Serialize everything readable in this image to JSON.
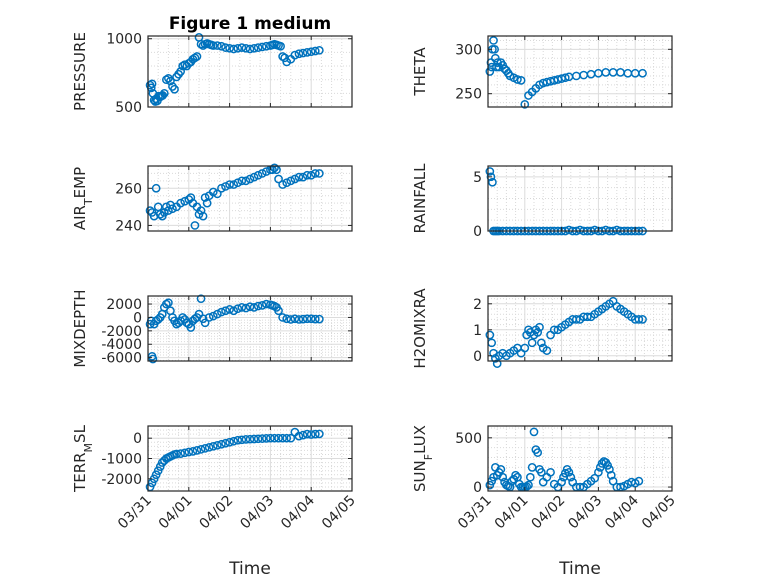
{
  "figure_title": "Figure 1 medium",
  "xlabel": "Time",
  "x_tick_labels": [
    "03/31",
    "04/01",
    "04/02",
    "04/03",
    "04/04",
    "04/05"
  ],
  "marker_color": "#0072BD",
  "chart_data": [
    {
      "type": "scatter",
      "title": "Figure 1 medium",
      "ylabel": "PRESSURE",
      "ylim": [
        500,
        1020
      ],
      "yticks": [
        500,
        1000
      ],
      "xlim": [
        0,
        5
      ],
      "x": [
        0.05,
        0.08,
        0.1,
        0.12,
        0.15,
        0.18,
        0.2,
        0.23,
        0.26,
        0.3,
        0.33,
        0.36,
        0.4,
        0.45,
        0.5,
        0.55,
        0.6,
        0.65,
        0.7,
        0.75,
        0.8,
        0.85,
        0.9,
        0.95,
        1.0,
        1.05,
        1.1,
        1.15,
        1.2,
        1.25,
        1.3,
        1.35,
        1.4,
        1.45,
        1.5,
        1.55,
        1.6,
        1.7,
        1.8,
        1.9,
        2.0,
        2.1,
        2.2,
        2.3,
        2.4,
        2.5,
        2.6,
        2.7,
        2.8,
        2.9,
        3.0,
        3.05,
        3.1,
        3.15,
        3.2,
        3.25,
        3.3,
        3.35,
        3.4,
        3.5,
        3.6,
        3.7,
        3.8,
        3.9,
        4.0,
        4.1,
        4.2
      ],
      "y": [
        660,
        640,
        670,
        600,
        550,
        540,
        560,
        545,
        580,
        575,
        580,
        585,
        600,
        700,
        710,
        690,
        650,
        630,
        720,
        740,
        760,
        800,
        810,
        800,
        820,
        830,
        850,
        860,
        870,
        1010,
        960,
        950,
        960,
        965,
        960,
        955,
        950,
        950,
        945,
        935,
        930,
        925,
        930,
        935,
        930,
        925,
        930,
        935,
        940,
        945,
        950,
        955,
        960,
        955,
        950,
        945,
        870,
        860,
        830,
        850,
        880,
        890,
        895,
        900,
        905,
        910,
        915
      ]
    },
    {
      "type": "scatter",
      "ylabel": "THETA",
      "ylim": [
        235,
        315
      ],
      "yticks": [
        250,
        300
      ],
      "xlim": [
        0,
        5
      ],
      "x": [
        0.05,
        0.08,
        0.1,
        0.12,
        0.15,
        0.18,
        0.2,
        0.23,
        0.26,
        0.3,
        0.35,
        0.4,
        0.45,
        0.5,
        0.55,
        0.6,
        0.7,
        0.8,
        0.9,
        1.0,
        1.1,
        1.2,
        1.3,
        1.4,
        1.5,
        1.6,
        1.7,
        1.8,
        1.9,
        2.0,
        2.1,
        2.2,
        2.4,
        2.6,
        2.8,
        3.0,
        3.2,
        3.4,
        3.6,
        3.8,
        4.0,
        4.2
      ],
      "y": [
        275,
        285,
        280,
        300,
        310,
        300,
        290,
        280,
        285,
        280,
        285,
        282,
        278,
        276,
        273,
        270,
        268,
        266,
        265,
        238,
        248,
        252,
        256,
        260,
        262,
        263,
        264,
        265,
        266,
        267,
        268,
        269,
        270,
        271,
        272,
        273,
        274,
        274,
        274,
        273,
        273,
        273
      ]
    },
    {
      "type": "scatter",
      "ylabel": "AIR_TEMP",
      "ylim": [
        237,
        272
      ],
      "yticks": [
        240,
        260
      ],
      "xlim": [
        0,
        5
      ],
      "x": [
        0.05,
        0.1,
        0.15,
        0.2,
        0.25,
        0.3,
        0.35,
        0.4,
        0.45,
        0.5,
        0.55,
        0.6,
        0.7,
        0.8,
        0.9,
        1.0,
        1.05,
        1.1,
        1.15,
        1.2,
        1.25,
        1.3,
        1.35,
        1.4,
        1.45,
        1.5,
        1.6,
        1.7,
        1.8,
        1.9,
        2.0,
        2.1,
        2.2,
        2.3,
        2.4,
        2.5,
        2.6,
        2.7,
        2.8,
        2.9,
        3.0,
        3.05,
        3.1,
        3.15,
        3.2,
        3.3,
        3.4,
        3.5,
        3.6,
        3.7,
        3.8,
        3.9,
        4.0,
        4.1,
        4.2
      ],
      "y": [
        248,
        247,
        245,
        260,
        250,
        246,
        245,
        247,
        250,
        248,
        251,
        249,
        250,
        252,
        253,
        254,
        255,
        252,
        240,
        250,
        246,
        248,
        245,
        255,
        252,
        256,
        258,
        257,
        260,
        261,
        262,
        262,
        263,
        264,
        264,
        265,
        266,
        267,
        268,
        269,
        270,
        270,
        271,
        270,
        265,
        262,
        263,
        264,
        265,
        266,
        266,
        267,
        267,
        268,
        268
      ]
    },
    {
      "type": "scatter",
      "ylabel": "RAINFALL",
      "ylim": [
        0,
        6
      ],
      "yticks": [
        0,
        5
      ],
      "xlim": [
        0,
        5
      ],
      "x": [
        0.05,
        0.08,
        0.12,
        0.15,
        0.2,
        0.25,
        0.3,
        0.4,
        0.5,
        0.6,
        0.7,
        0.8,
        0.9,
        1.0,
        1.1,
        1.2,
        1.3,
        1.4,
        1.5,
        1.6,
        1.7,
        1.8,
        1.9,
        2.0,
        2.1,
        2.2,
        2.3,
        2.4,
        2.5,
        2.6,
        2.7,
        2.8,
        2.9,
        3.0,
        3.1,
        3.2,
        3.3,
        3.4,
        3.5,
        3.6,
        3.7,
        3.8,
        3.9,
        4.0,
        4.1,
        4.2
      ],
      "y": [
        5.5,
        5.0,
        4.5,
        0,
        0,
        0,
        0,
        0,
        0,
        0,
        0,
        0,
        0,
        0,
        0,
        0,
        0,
        0,
        0,
        0,
        0,
        0,
        0,
        0,
        0,
        0.1,
        0,
        0,
        0.1,
        0,
        0,
        0,
        0.1,
        0,
        0,
        0.1,
        0,
        0,
        0.1,
        0,
        0,
        0,
        0,
        0,
        0,
        0
      ]
    },
    {
      "type": "scatter",
      "ylabel": "MIXDEPTH",
      "ylim": [
        -6500,
        3200
      ],
      "yticks": [
        -6000,
        -4000,
        -2000,
        0,
        2000
      ],
      "xlim": [
        0,
        5
      ],
      "x": [
        0.05,
        0.08,
        0.1,
        0.12,
        0.15,
        0.2,
        0.25,
        0.3,
        0.35,
        0.4,
        0.45,
        0.5,
        0.55,
        0.6,
        0.65,
        0.7,
        0.75,
        0.8,
        0.85,
        0.9,
        0.95,
        1.0,
        1.05,
        1.1,
        1.15,
        1.2,
        1.25,
        1.3,
        1.35,
        1.4,
        1.5,
        1.6,
        1.7,
        1.8,
        1.9,
        2.0,
        2.1,
        2.2,
        2.3,
        2.4,
        2.5,
        2.6,
        2.7,
        2.8,
        2.9,
        3.0,
        3.05,
        3.1,
        3.15,
        3.2,
        3.3,
        3.4,
        3.5,
        3.6,
        3.7,
        3.8,
        3.9,
        4.0,
        4.1,
        4.2
      ],
      "y": [
        -1000,
        -500,
        -5800,
        -6200,
        -1000,
        -500,
        -300,
        0,
        500,
        1500,
        2000,
        2200,
        1000,
        0,
        -500,
        -1000,
        -800,
        -500,
        0,
        -300,
        -800,
        -1000,
        -1500,
        -500,
        -200,
        0,
        500,
        2800,
        -200,
        -800,
        0,
        200,
        500,
        800,
        1000,
        1200,
        1000,
        1300,
        1500,
        1400,
        1600,
        1500,
        1700,
        1800,
        2000,
        1900,
        1800,
        1700,
        1500,
        1000,
        0,
        -200,
        -300,
        -200,
        -300,
        -250,
        -200,
        -200,
        -250,
        -250
      ]
    },
    {
      "type": "scatter",
      "ylabel": "H2OMIXRA",
      "ylim": [
        -0.2,
        2.3
      ],
      "yticks": [
        0,
        1,
        2
      ],
      "xlim": [
        0,
        5
      ],
      "x": [
        0.05,
        0.1,
        0.15,
        0.2,
        0.25,
        0.3,
        0.4,
        0.5,
        0.6,
        0.7,
        0.8,
        0.9,
        1.0,
        1.05,
        1.1,
        1.15,
        1.2,
        1.25,
        1.3,
        1.35,
        1.4,
        1.45,
        1.5,
        1.6,
        1.7,
        1.8,
        1.9,
        2.0,
        2.1,
        2.2,
        2.3,
        2.4,
        2.5,
        2.6,
        2.7,
        2.8,
        2.9,
        3.0,
        3.1,
        3.2,
        3.3,
        3.4,
        3.5,
        3.6,
        3.7,
        3.8,
        3.9,
        4.0,
        4.1,
        4.2
      ],
      "y": [
        0.8,
        0.5,
        0.1,
        -0.1,
        -0.3,
        0,
        0.1,
        0,
        0.1,
        0.2,
        0.3,
        0.1,
        0.3,
        0.8,
        1.0,
        0.9,
        0.5,
        0.8,
        1.0,
        0.9,
        1.1,
        0.5,
        0.3,
        0.2,
        0.8,
        1.0,
        1.0,
        1.1,
        1.2,
        1.3,
        1.4,
        1.4,
        1.4,
        1.5,
        1.5,
        1.5,
        1.6,
        1.7,
        1.8,
        1.9,
        2.0,
        2.1,
        1.9,
        1.8,
        1.7,
        1.6,
        1.5,
        1.4,
        1.4,
        1.4
      ]
    },
    {
      "type": "scatter",
      "ylabel": "TERR_MSL",
      "ylim": [
        -2600,
        600
      ],
      "yticks": [
        -2000,
        -1000,
        0
      ],
      "xlim": [
        0,
        5
      ],
      "x": [
        0.05,
        0.1,
        0.15,
        0.2,
        0.25,
        0.3,
        0.35,
        0.4,
        0.45,
        0.5,
        0.55,
        0.6,
        0.65,
        0.7,
        0.8,
        0.9,
        1.0,
        1.1,
        1.2,
        1.3,
        1.4,
        1.5,
        1.6,
        1.7,
        1.8,
        1.9,
        2.0,
        2.1,
        2.2,
        2.3,
        2.4,
        2.5,
        2.6,
        2.7,
        2.8,
        2.9,
        3.0,
        3.1,
        3.2,
        3.3,
        3.4,
        3.5,
        3.6,
        3.7,
        3.8,
        3.9,
        4.0,
        4.1,
        4.2
      ],
      "y": [
        -2400,
        -2200,
        -2000,
        -1800,
        -1600,
        -1400,
        -1200,
        -1100,
        -1000,
        -950,
        -900,
        -850,
        -800,
        -780,
        -760,
        -720,
        -680,
        -650,
        -600,
        -550,
        -500,
        -450,
        -400,
        -350,
        -300,
        -250,
        -200,
        -150,
        -100,
        -80,
        -60,
        -50,
        -40,
        -30,
        -20,
        -10,
        0,
        0,
        0,
        0,
        0,
        0,
        300,
        100,
        150,
        200,
        180,
        200,
        210
      ]
    },
    {
      "type": "scatter",
      "ylabel": "SUN_FLUX",
      "ylim": [
        -40,
        620
      ],
      "yticks": [
        0,
        500
      ],
      "xlim": [
        0,
        5
      ],
      "x": [
        0.05,
        0.1,
        0.15,
        0.2,
        0.25,
        0.3,
        0.35,
        0.4,
        0.45,
        0.5,
        0.55,
        0.6,
        0.65,
        0.7,
        0.75,
        0.8,
        0.85,
        0.9,
        0.95,
        1.0,
        1.05,
        1.1,
        1.15,
        1.2,
        1.25,
        1.3,
        1.35,
        1.4,
        1.45,
        1.5,
        1.6,
        1.7,
        1.8,
        1.9,
        2.0,
        2.05,
        2.1,
        2.15,
        2.2,
        2.25,
        2.3,
        2.4,
        2.5,
        2.6,
        2.7,
        2.8,
        2.9,
        3.0,
        3.05,
        3.1,
        3.15,
        3.2,
        3.25,
        3.3,
        3.35,
        3.4,
        3.5,
        3.6,
        3.7,
        3.8,
        3.9,
        4.0,
        4.1
      ],
      "y": [
        20,
        60,
        100,
        200,
        120,
        150,
        180,
        100,
        50,
        20,
        10,
        0,
        60,
        80,
        120,
        100,
        30,
        0,
        0,
        0,
        5,
        20,
        100,
        200,
        560,
        380,
        350,
        180,
        150,
        50,
        100,
        150,
        30,
        0,
        50,
        100,
        140,
        180,
        150,
        100,
        50,
        0,
        0,
        0,
        30,
        60,
        90,
        150,
        200,
        240,
        260,
        250,
        220,
        180,
        120,
        60,
        0,
        0,
        10,
        30,
        50,
        40,
        60
      ]
    }
  ]
}
